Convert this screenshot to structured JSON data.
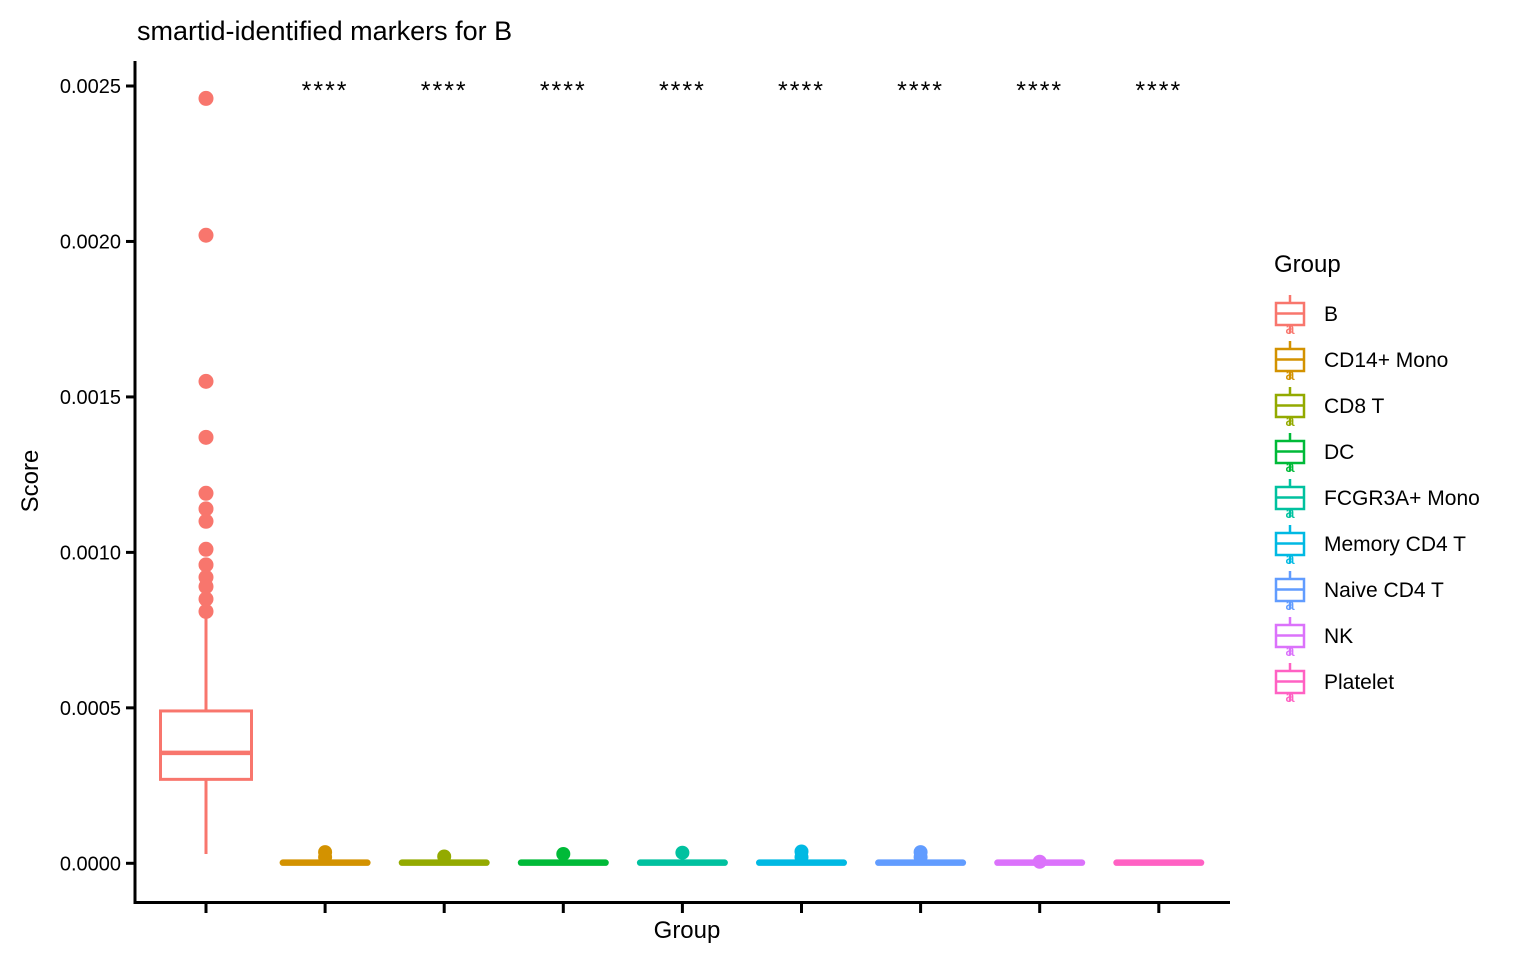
{
  "title": "smartid-identified markers for B",
  "axes": {
    "x_title": "Group",
    "y_title": "Score"
  },
  "legend": {
    "title": "Group",
    "position": "right",
    "key_letter": "a"
  },
  "chart_data": {
    "type": "boxplot",
    "title": "smartid-identified markers for B",
    "xlabel": "Group",
    "ylabel": "Score",
    "ylim": [
      0,
      0.0026
    ],
    "yticks": [
      0,
      0.0005,
      0.001,
      0.0015,
      0.002,
      0.0025
    ],
    "ytick_labels": [
      "0.0000",
      "0.0005",
      "0.0010",
      "0.0015",
      "0.0020",
      "0.0025"
    ],
    "x_tick_labels_shown": false,
    "grid": false,
    "legend_position": "right",
    "significance_marker": "****",
    "significance_y": 0.0025,
    "groups": [
      {
        "name": "B",
        "color": "#F8766D",
        "q1": 0.00027,
        "median": 0.000355,
        "q3": 0.00049,
        "whisker_low": 3e-05,
        "whisker_high": 0.00079,
        "outliers": [
          0.00246,
          0.00202,
          0.00155,
          0.00137,
          0.00119,
          0.00114,
          0.0011,
          0.00101,
          0.00096,
          0.00092,
          0.00089,
          0.00085,
          0.00081
        ],
        "significance": null
      },
      {
        "name": "CD14+ Mono",
        "color": "#D39200",
        "q1": 0,
        "median": 2e-06,
        "q3": 1e-05,
        "whisker_low": 0,
        "whisker_high": 1e-05,
        "outliers": [
          3.6e-05,
          2e-05
        ],
        "significance": "****"
      },
      {
        "name": "CD8 T",
        "color": "#93AA00",
        "q1": 0,
        "median": 2e-06,
        "q3": 1e-05,
        "whisker_low": 0,
        "whisker_high": 1e-05,
        "outliers": [
          2.2e-05
        ],
        "significance": "****"
      },
      {
        "name": "DC",
        "color": "#00BA38",
        "q1": 0,
        "median": 2e-06,
        "q3": 1e-05,
        "whisker_low": 0,
        "whisker_high": 1e-05,
        "outliers": [
          3e-05
        ],
        "significance": "****"
      },
      {
        "name": "FCGR3A+ Mono",
        "color": "#00C19F",
        "q1": 0,
        "median": 2e-06,
        "q3": 1e-05,
        "whisker_low": 0,
        "whisker_high": 1e-05,
        "outliers": [
          3.4e-05
        ],
        "significance": "****"
      },
      {
        "name": "Memory CD4 T",
        "color": "#00B9E3",
        "q1": 0,
        "median": 2e-06,
        "q3": 1e-05,
        "whisker_low": 0,
        "whisker_high": 1e-05,
        "outliers": [
          3.8e-05,
          2e-05
        ],
        "significance": "****"
      },
      {
        "name": "Naive CD4 T",
        "color": "#619CFF",
        "q1": 0,
        "median": 2e-06,
        "q3": 1e-05,
        "whisker_low": 0,
        "whisker_high": 1e-05,
        "outliers": [
          3.6e-05,
          2e-05
        ],
        "significance": "****"
      },
      {
        "name": "NK",
        "color": "#DB72FB",
        "q1": 0,
        "median": 2e-06,
        "q3": 1e-05,
        "whisker_low": 0,
        "whisker_high": 1e-05,
        "outliers": [
          5e-06
        ],
        "significance": "****"
      },
      {
        "name": "Platelet",
        "color": "#FF61C3",
        "q1": 0,
        "median": 2e-06,
        "q3": 1e-05,
        "whisker_low": 0,
        "whisker_high": 1e-05,
        "outliers": [],
        "significance": "****"
      }
    ]
  }
}
